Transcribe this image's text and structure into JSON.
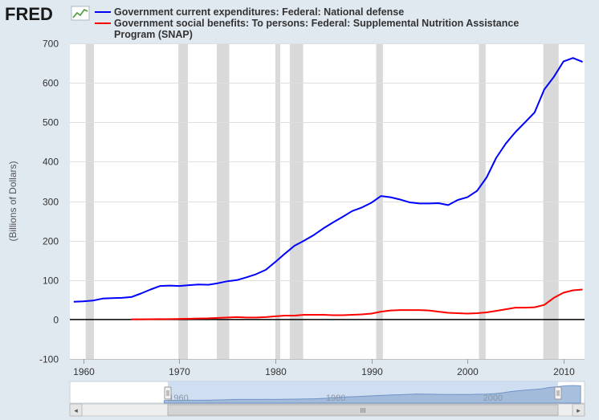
{
  "logo": {
    "text": "FRED",
    "icon": "chart-line-icon"
  },
  "colors": {
    "background": "#e1e9f0",
    "plot_background": "#ffffff",
    "recession": "#d9d9d9",
    "defense": "#0000ff",
    "snap": "#ff0000",
    "zero_line": "#000000",
    "navigator_fill": "#9ab5d8",
    "navigator_line": "#5f88c0"
  },
  "chart_data": {
    "type": "line",
    "title": "",
    "xlabel": "",
    "ylabel": "(Billions of Dollars)",
    "xlim": [
      1958.6,
      2012.2
    ],
    "ylim": [
      -100,
      700
    ],
    "yticks": [
      -100,
      0,
      100,
      200,
      300,
      400,
      500,
      600,
      700
    ],
    "xticks": [
      1960,
      1970,
      1980,
      1990,
      2000,
      2010
    ],
    "grid": "horizontal",
    "legend": "top",
    "recessions": [
      [
        1960.25,
        1961.1
      ],
      [
        1969.9,
        1970.9
      ],
      [
        1973.9,
        1975.2
      ],
      [
        1980.0,
        1980.5
      ],
      [
        1981.5,
        1982.9
      ],
      [
        1990.5,
        1991.2
      ],
      [
        2001.2,
        2001.9
      ],
      [
        2007.9,
        2009.5
      ]
    ],
    "series": [
      {
        "name": "Government current expenditures: Federal: National defense",
        "color": "#0000ff",
        "x": [
          1959,
          1960,
          1961,
          1962,
          1963,
          1964,
          1965,
          1966,
          1967,
          1968,
          1969,
          1970,
          1971,
          1972,
          1973,
          1974,
          1975,
          1976,
          1977,
          1978,
          1979,
          1980,
          1981,
          1982,
          1983,
          1984,
          1985,
          1986,
          1987,
          1988,
          1989,
          1990,
          1991,
          1992,
          1993,
          1994,
          1995,
          1996,
          1997,
          1998,
          1999,
          2000,
          2001,
          2002,
          2003,
          2004,
          2005,
          2006,
          2007,
          2008,
          2009,
          2010,
          2011,
          2012
        ],
        "values": [
          45,
          46,
          48,
          53,
          54,
          55,
          57,
          66,
          76,
          85,
          86,
          85,
          87,
          89,
          88,
          92,
          97,
          100,
          107,
          115,
          126,
          146,
          167,
          187,
          200,
          214,
          231,
          246,
          260,
          275,
          284,
          296,
          313,
          310,
          304,
          297,
          294,
          294,
          295,
          290,
          303,
          310,
          326,
          360,
          410,
          446,
          475,
          500,
          525,
          583,
          615,
          654,
          663,
          653
        ]
      },
      {
        "name": "Government social benefits: To persons: Federal: Supplemental Nutrition Assistance Program (SNAP)",
        "color": "#ff0000",
        "x": [
          1965,
          1966,
          1967,
          1968,
          1969,
          1970,
          1971,
          1972,
          1973,
          1974,
          1975,
          1976,
          1977,
          1978,
          1979,
          1980,
          1981,
          1982,
          1983,
          1984,
          1985,
          1986,
          1987,
          1988,
          1989,
          1990,
          1991,
          1992,
          1993,
          1994,
          1995,
          1996,
          1997,
          1998,
          1999,
          2000,
          2001,
          2002,
          2003,
          2004,
          2005,
          2006,
          2007,
          2008,
          2009,
          2010,
          2011,
          2012
        ],
        "values": [
          0.5,
          0.6,
          0.7,
          0.9,
          1,
          1.5,
          2,
          2.5,
          3,
          4,
          5,
          6,
          5,
          5,
          6,
          8,
          10,
          10,
          12,
          12,
          12,
          11,
          11,
          12,
          13,
          15,
          20,
          23,
          24,
          24,
          24,
          23,
          20,
          17,
          16,
          15,
          16,
          18,
          22,
          26,
          30,
          30,
          31,
          37,
          55,
          68,
          74,
          76
        ]
      }
    ]
  },
  "navigator": {
    "tick_labels": [
      "1960",
      "1980",
      "2000"
    ],
    "scrollbar_left": "◂",
    "scrollbar_right": "▸",
    "scrollbar_grip": "III",
    "handle_grip": "||"
  }
}
